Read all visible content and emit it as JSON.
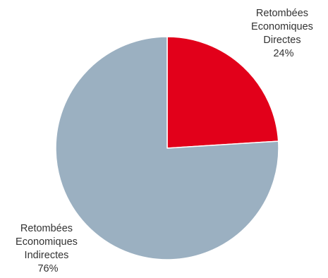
{
  "chart_data": {
    "type": "pie",
    "start_angle_deg": 0,
    "direction": "clockwise",
    "slices": [
      {
        "label_lines": [
          "Retombées",
          "Economiques",
          "Directes",
          "24%"
        ],
        "value": 24,
        "color": "#e2001a"
      },
      {
        "label_lines": [
          "Retombées",
          "Economiques",
          "Indirectes",
          "76%"
        ],
        "value": 76,
        "color": "#9bb0c1"
      }
    ],
    "slice_border_color": "#ffffff"
  }
}
